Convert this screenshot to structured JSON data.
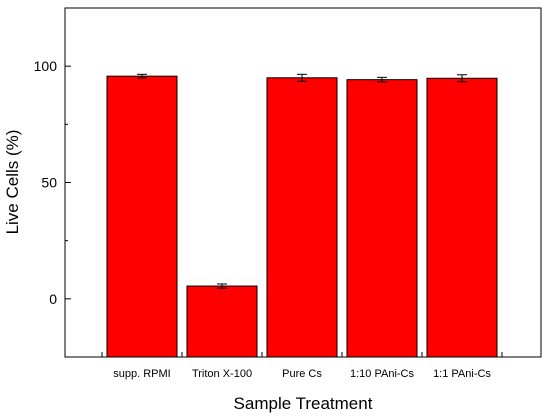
{
  "chart_data": {
    "type": "bar",
    "categories": [
      "supp. RPMI",
      "Triton X-100",
      "Pure Cs",
      "1:10 PAni-Cs",
      "1:1 PAni-Cs"
    ],
    "values": [
      95.7,
      5.5,
      95.0,
      94.2,
      94.8
    ],
    "errors": [
      0.8,
      0.9,
      1.5,
      1.0,
      1.5
    ],
    "xlabel": "Sample Treatment",
    "ylabel": "Live Cells (%)",
    "ylim": [
      -25,
      125
    ],
    "yticks": [
      0,
      50,
      100
    ],
    "grid": false,
    "bar_color": "#ff0000"
  }
}
